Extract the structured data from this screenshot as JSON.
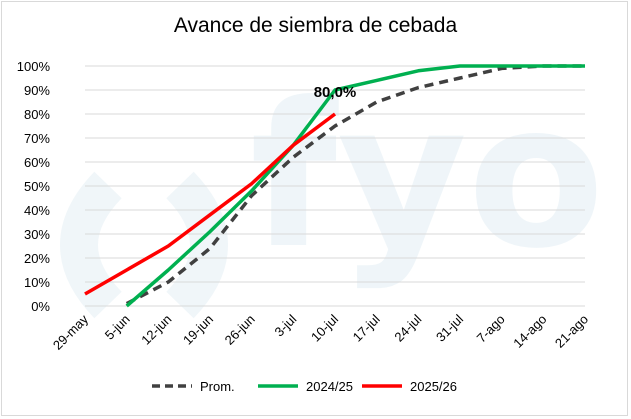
{
  "chart_data": {
    "type": "line",
    "title": "Avance de siembra de cebada",
    "xlabel": "",
    "ylabel": "",
    "categories": [
      "29-may",
      "5-jun",
      "12-jun",
      "19-jun",
      "26-jun",
      "3-jul",
      "10-jul",
      "17-jul",
      "24-jul",
      "31-jul",
      "7-ago",
      "14-ago",
      "21-ago"
    ],
    "y_ticks": [
      "0%",
      "10%",
      "20%",
      "30%",
      "40%",
      "50%",
      "60%",
      "70%",
      "80%",
      "90%",
      "100%"
    ],
    "ylim": [
      0,
      100
    ],
    "grid": true,
    "legend_position": "bottom",
    "watermark": "fyo",
    "series": [
      {
        "name": "Prom.",
        "color": "#404040",
        "dash": true,
        "values": [
          null,
          1,
          10,
          24,
          46,
          62,
          75,
          85,
          91,
          95,
          99,
          100,
          100
        ]
      },
      {
        "name": "2024/25",
        "color": "#00b050",
        "dash": false,
        "values": [
          null,
          0,
          15,
          31,
          48,
          67,
          90,
          94,
          98,
          100,
          100,
          100,
          100
        ]
      },
      {
        "name": "2025/26",
        "color": "#ff0000",
        "dash": false,
        "values": [
          5,
          15,
          25,
          38,
          51,
          67,
          80,
          null,
          null,
          null,
          null,
          null,
          null
        ]
      }
    ],
    "annotations": [
      {
        "series": "2025/26",
        "category": "10-jul",
        "text": "80,0%"
      }
    ]
  }
}
